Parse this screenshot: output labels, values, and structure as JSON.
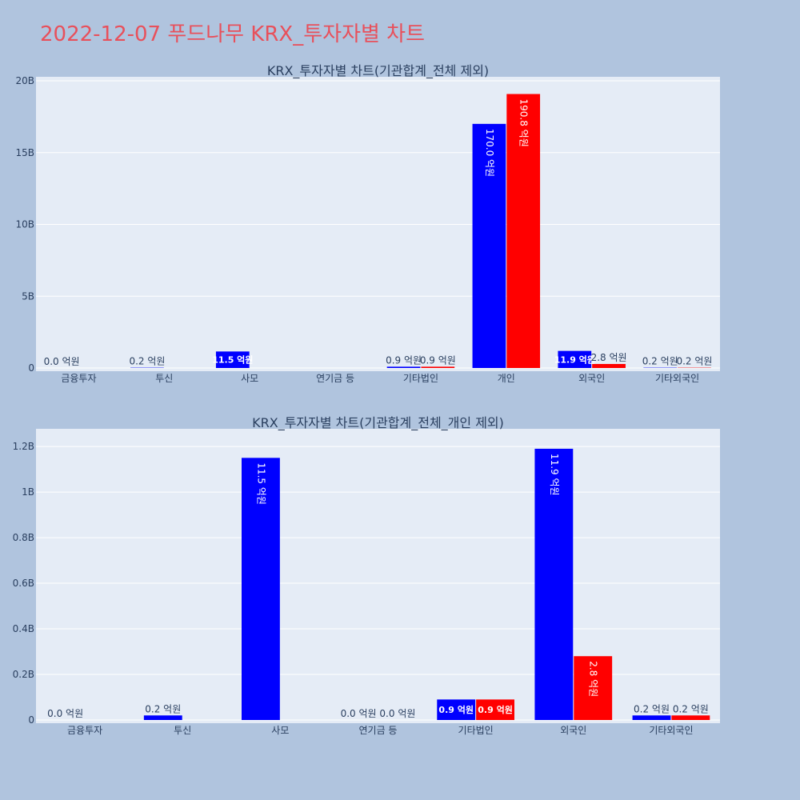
{
  "title": "2022-12-07 푸드나무 KRX_투자자별 차트",
  "colors": {
    "background": "#b0c4de",
    "plot_bg": "#e5ecf6",
    "buy": "#0000ff",
    "sell": "#ff0000",
    "title": "#e8505b"
  },
  "chart_data": [
    {
      "type": "bar",
      "title": "KRX_투자자별 차트(기관합계_전체 제외)",
      "categories": [
        "금융투자",
        "투신",
        "사모",
        "연기금 등",
        "기타법인",
        "개인",
        "외국인",
        "기타외국인"
      ],
      "series": [
        {
          "color": "#0000ff",
          "values": [
            0.0,
            0.02,
            1.15,
            0.0,
            0.09,
            17.0,
            1.19,
            0.02
          ],
          "labels": [
            "0.0 억원",
            "0.2 억원",
            "11.5 억원",
            "",
            "0.9 억원",
            "170.0 억원",
            "11.9 억원",
            "0.2 억원"
          ]
        },
        {
          "color": "#ff0000",
          "values": [
            0.0,
            0.0,
            0.0,
            0.0,
            0.09,
            19.08,
            0.28,
            0.02
          ],
          "labels": [
            "",
            "",
            "",
            "",
            "0.9 억원",
            "190.8 억원",
            "2.8 억원",
            "0.2 억원"
          ]
        }
      ],
      "yticks": [
        0,
        5,
        10,
        15,
        20
      ],
      "ytick_labels": [
        "0",
        "5B",
        "10B",
        "15B",
        "20B"
      ],
      "ylim": [
        0,
        20
      ],
      "grid": true
    },
    {
      "type": "bar",
      "title": "KRX_투자자별 차트(기관합계_전체_개인 제외)",
      "categories": [
        "금융투자",
        "투신",
        "사모",
        "연기금 등",
        "기타법인",
        "외국인",
        "기타외국인"
      ],
      "series": [
        {
          "color": "#0000ff",
          "values": [
            0.0,
            0.02,
            1.15,
            0.0,
            0.09,
            1.19,
            0.02
          ],
          "labels": [
            "0.0 억원",
            "0.2 억원",
            "11.5 억원",
            "0.0 억원",
            "0.9 억원",
            "11.9 억원",
            "0.2 억원"
          ]
        },
        {
          "color": "#ff0000",
          "values": [
            0.0,
            0.0,
            0.0,
            0.0,
            0.09,
            0.28,
            0.02
          ],
          "labels": [
            "",
            "",
            "",
            "0.0 억원",
            "0.9 억원",
            "2.8 억원",
            "0.2 억원"
          ]
        }
      ],
      "yticks": [
        0,
        0.2,
        0.4,
        0.6,
        0.8,
        1.0,
        1.2
      ],
      "ytick_labels": [
        "0",
        "0.2B",
        "0.4B",
        "0.6B",
        "0.8B",
        "1B",
        "1.2B"
      ],
      "ylim": [
        0,
        1.26
      ],
      "grid": true
    }
  ]
}
